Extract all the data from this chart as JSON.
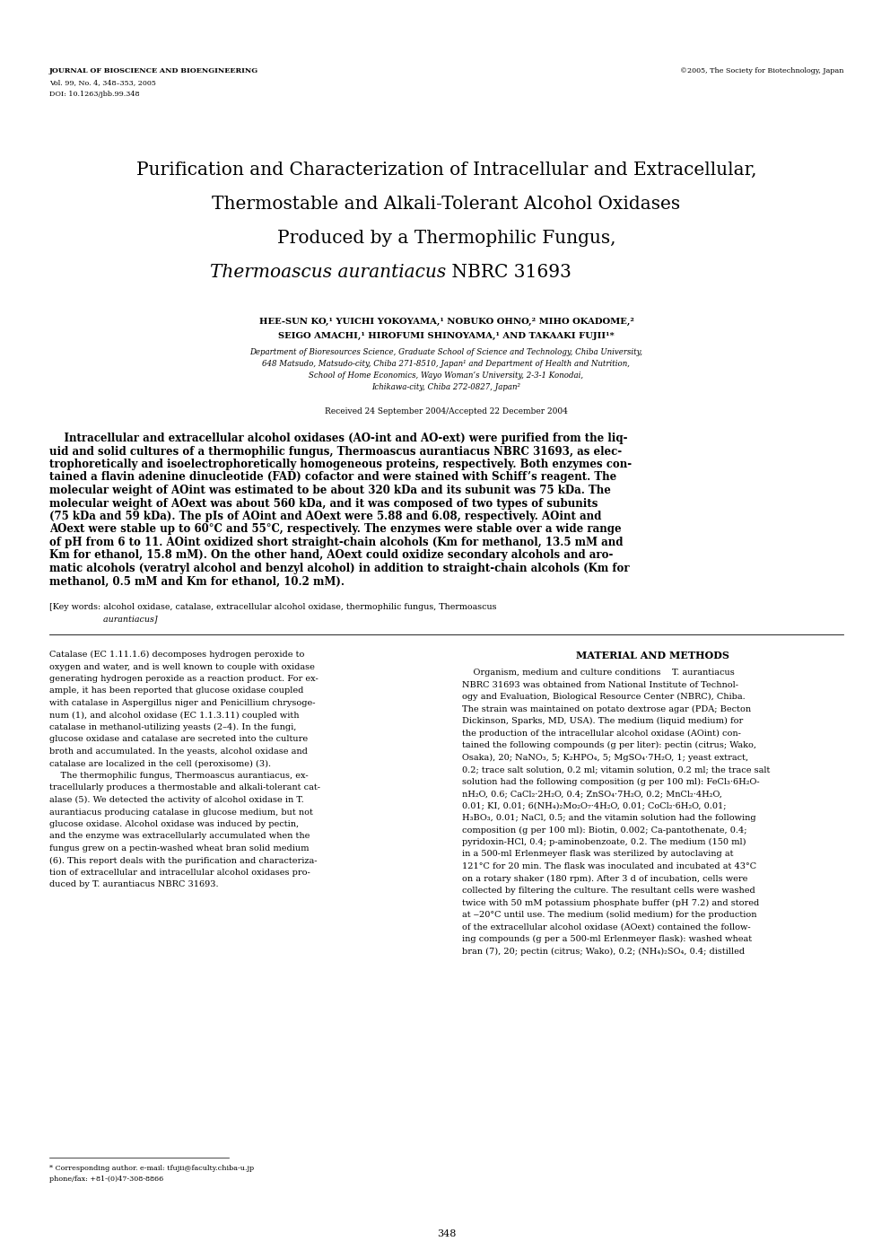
{
  "page_width": 9.92,
  "page_height": 14.03,
  "dpi": 100,
  "background_color": "#ffffff",
  "header_left_line1": "JOURNAL OF BIOSCIENCE AND BIOENGINEERING",
  "header_left_line2": "Vol. 99, No. 4, 348–353, 2005",
  "header_left_line3": "DOI: 10.1263/jbb.99.348",
  "header_right": "©2005, The Society for Biotechnology, Japan",
  "title_line1": "Purification and Characterization of Intracellular and Extracellular,",
  "title_line2": "Thermostable and Alkali-Tolerant Alcohol Oxidases",
  "title_line3": "Produced by a Thermophilic Fungus,",
  "title_line4_italic": "Thermoascus aurantiacus",
  "title_line4_normal": " NBRC 31693",
  "authors_line1": "HEE-SUN KO,¹ YUICHI YOKOYAMA,¹ NOBUKO OHNO,² MIHO OKADOME,²",
  "authors_line2": "SEIGO AMACHI,¹ HIROFUMI SHINOYAMA,¹ AND TAKAAKI FUJII¹*",
  "affil1": "Department of Bioresources Science, Graduate School of Science and Technology, Chiba University,",
  "affil2": "648 Matsudo, Matsudo-city, Chiba 271-8510, Japan¹ and Department of Health and Nutrition,",
  "affil3": "School of Home Economics, Wayo Woman’s University, 2-3-1 Konodai,",
  "affil4": "Ichikawa-city, Chiba 272-0827, Japan²",
  "received": "Received 24 September 2004/Accepted 22 December 2004",
  "abstract_lines": [
    "    Intracellular and extracellular alcohol oxidases (AO­int and AO­ext) were purified from the liq-",
    "uid and solid cultures of a thermophilic fungus, Thermoascus aurantiacus NBRC 31693, as elec-",
    "trophoretically and isoelectrophoretically homogeneous proteins, respectively. Both enzymes con-",
    "tained a flavin adenine dinucleotide (FAD) cofactor and were stained with Schiff’s reagent. The",
    "molecular weight of AOint was estimated to be about 320 kDa and its subunit was 75 kDa. The",
    "molecular weight of AOext was about 560 kDa, and it was composed of two types of subunits",
    "(75 kDa and 59 kDa). The pIs of AOint and AOext were 5.88 and 6.08, respectively. AOint and",
    "AOext were stable up to 60°C and 55°C, respectively. The enzymes were stable over a wide range",
    "of pH from 6 to 11. AOint oxidized short straight-chain alcohols (Km for methanol, 13.5 mM and",
    "Km for ethanol, 15.8 mM). On the other hand, AOext could oxidize secondary alcohols and aro-",
    "matic alcohols (veratryl alcohol and benzyl alcohol) in addition to straight-chain alcohols (Km for",
    "methanol, 0.5 mM and Km for ethanol, 10.2 mM)."
  ],
  "kw_line1": "[Key words: alcohol oxidase, catalase, extracellular alcohol oxidase, thermophilic fungus, Thermoascus",
  "kw_line2": "                    aurantiacus]",
  "col1_lines": [
    "Catalase (EC 1.11.1.6) decomposes hydrogen peroxide to",
    "oxygen and water, and is well known to couple with oxidase",
    "generating hydrogen peroxide as a reaction product. For ex-",
    "ample, it has been reported that glucose oxidase coupled",
    "with catalase in Aspergillus niger and Penicillium chrysoge-",
    "num (1), and alcohol oxidase (EC 1.1.3.11) coupled with",
    "catalase in methanol-utilizing yeasts (2–4). In the fungi,",
    "glucose oxidase and catalase are secreted into the culture",
    "broth and accumulated. In the yeasts, alcohol oxidase and",
    "catalase are localized in the cell (peroxisome) (3).",
    "    The thermophilic fungus, Thermoascus aurantiacus, ex-",
    "tracellularly produces a thermostable and alkali-tolerant cat-",
    "alase (5). We detected the activity of alcohol oxidase in T.",
    "aurantiacus producing catalase in glucose medium, but not",
    "glucose oxidase. Alcohol oxidase was induced by pectin,",
    "and the enzyme was extracellularly accumulated when the",
    "fungus grew on a pectin-washed wheat bran solid medium",
    "(6). This report deals with the purification and characteriza-",
    "tion of extracellular and intracellular alcohol oxidases pro-",
    "duced by T. aurantiacus NBRC 31693."
  ],
  "col2_header": "MATERIAL AND METHODS",
  "col2_lines": [
    "    Organism, medium and culture conditions    T. aurantiacus",
    "NBRC 31693 was obtained from National Institute of Technol-",
    "ogy and Evaluation, Biological Resource Center (NBRC), Chiba.",
    "The strain was maintained on potato dextrose agar (PDA; Becton",
    "Dickinson, Sparks, MD, USA). The medium (liquid medium) for",
    "the production of the intracellular alcohol oxidase (AOint) con-",
    "tained the following compounds (g per liter): pectin (citrus; Wako,",
    "Osaka), 20; NaNO₃, 5; K₂HPO₄, 5; MgSO₄·7H₂O, 1; yeast extract,",
    "0.2; trace salt solution, 0.2 ml; vitamin solution, 0.2 ml; the trace salt",
    "solution had the following composition (g per 100 ml): FeCl₃·6H₂O­",
    "nH₂O, 0.6; CaCl₂·2H₂O, 0.4; ZnSO₄·7H₂O, 0.2; MnCl₂·4H₂O,",
    "0.01; KI, 0.01; 6(NH₄)₂Mo₂O₇·4H₂O, 0.01; CoCl₂·6H₂O, 0.01;",
    "H₃BO₃, 0.01; NaCl, 0.5; and the vitamin solution had the following",
    "composition (g per 100 ml): Biotin, 0.002; Ca-pantothenate, 0.4;",
    "pyridoxin-HCl, 0.4; p-aminobenzoate, 0.2. The medium (150 ml)",
    "in a 500-ml Erlenmeyer flask was sterilized by autoclaving at",
    "121°C for 20 min. The flask was inoculated and incubated at 43°C",
    "on a rotary shaker (180 rpm). After 3 d of incubation, cells were",
    "collected by filtering the culture. The resultant cells were washed",
    "twice with 50 mM potassium phosphate buffer (pH 7.2) and stored",
    "at ‒20°C until use. The medium (solid medium) for the production",
    "of the extracellular alcohol oxidase (AOext) contained the follow-",
    "ing compounds (g per a 500-ml Erlenmeyer flask): washed wheat",
    "bran (7), 20; pectin (citrus; Wako), 0.2; (NH₄)₂SO₄, 0.4; distilled"
  ],
  "footnote_line1": "* Corresponding author. e-mail: tfujii@faculty.chiba-u.jp",
  "footnote_line2": "phone/fax: +81-(0)47-308-8866",
  "page_number": "348"
}
